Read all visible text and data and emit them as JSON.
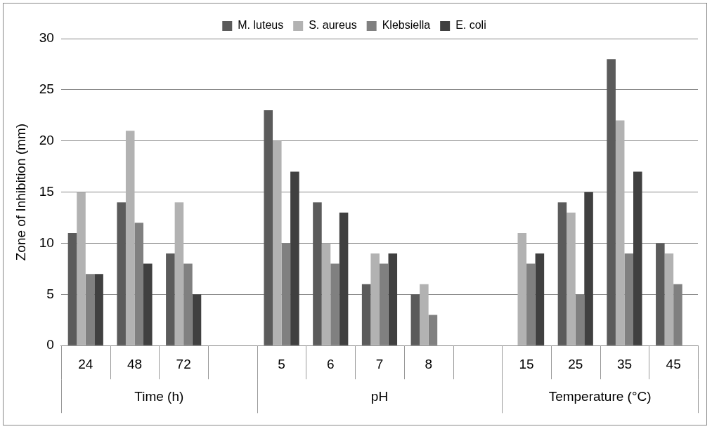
{
  "chart_data": {
    "type": "bar",
    "ylabel": "Zone of Inhibition (mm)",
    "categories": [
      "24",
      "48",
      "72",
      null,
      "5",
      "6",
      "7",
      "8",
      null,
      "15",
      "25",
      "35",
      "45"
    ],
    "annotations": [
      "Time (h)",
      "pH",
      "Temperature (°C)"
    ],
    "series": [
      {
        "name": "M. luteus",
        "color": "#5b5b5b",
        "values": [
          11,
          14,
          9,
          null,
          23,
          14,
          6,
          5,
          null,
          null,
          14,
          28,
          10
        ]
      },
      {
        "name": "S. aureus",
        "color": "#b2b2b2",
        "values": [
          15,
          21,
          14,
          null,
          20,
          10,
          9,
          6,
          null,
          11,
          13,
          22,
          9
        ]
      },
      {
        "name": "Klebsiella",
        "color": "#808080",
        "values": [
          7,
          12,
          8,
          null,
          10,
          8,
          8,
          3,
          null,
          8,
          5,
          9,
          6
        ]
      },
      {
        "name": "E. coli",
        "color": "#404040",
        "values": [
          7,
          8,
          5,
          null,
          17,
          13,
          9,
          null,
          null,
          9,
          15,
          17,
          null
        ]
      }
    ],
    "ylim": [
      0,
      30
    ],
    "yticks": [
      0,
      5,
      10,
      15,
      20,
      25,
      30
    ],
    "grid": "y",
    "legend": "top"
  }
}
